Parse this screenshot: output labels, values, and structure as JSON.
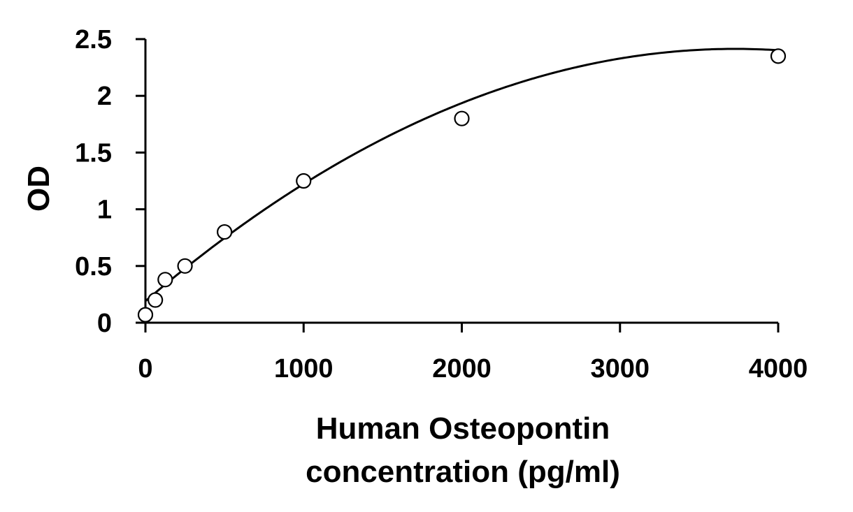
{
  "chart_data": {
    "type": "scatter",
    "xlabel_lines": [
      "Human Osteopontin",
      "concentration (pg/ml)"
    ],
    "ylabel": "OD",
    "xlim": [
      0,
      4000
    ],
    "ylim": [
      0,
      2.5
    ],
    "x_ticks": [
      0,
      1000,
      2000,
      3000,
      4000
    ],
    "x_tick_labels": [
      "0",
      "1000",
      "2000",
      "3000",
      "4000"
    ],
    "y_ticks": [
      0,
      0.5,
      1,
      1.5,
      2,
      2.5
    ],
    "y_tick_labels": [
      "0",
      "0.5",
      "1",
      "1.5",
      "2",
      "2.5"
    ],
    "grid": false,
    "legend": "none",
    "series": [
      {
        "x": [
          0,
          62.5,
          125,
          250,
          500,
          1000,
          2000,
          4000
        ],
        "y": [
          0.07,
          0.2,
          0.38,
          0.5,
          0.8,
          1.25,
          1.8,
          2.35
        ]
      }
    ],
    "fit": {
      "type": "polynomial-2",
      "coefficients": [
        0.19,
        0.001193,
        -1.6e-07
      ]
    },
    "colors": {
      "axis": "#000000",
      "marker_stroke": "#000000",
      "marker_fill": "#ffffff",
      "curve": "#000000"
    }
  }
}
